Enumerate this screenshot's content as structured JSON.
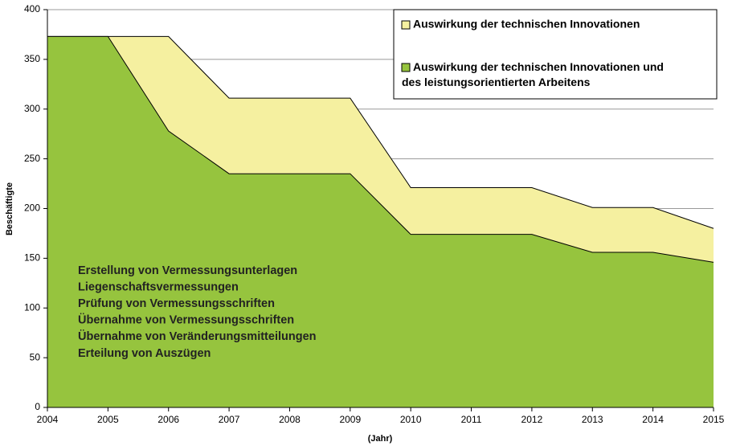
{
  "chart_data": {
    "type": "area",
    "x": [
      2004,
      2005,
      2006,
      2007,
      2008,
      2009,
      2010,
      2011,
      2012,
      2013,
      2014,
      2015
    ],
    "series": [
      {
        "name": "Auswirkung der technischen Innovationen",
        "color": "#f5f0a0",
        "values": [
          373,
          373,
          373,
          311,
          311,
          311,
          221,
          221,
          221,
          201,
          201,
          180
        ]
      },
      {
        "name": "Auswirkung der technischen Innovationen und des leistungsorientierten Arbeitens",
        "color": "#96c43e",
        "values": [
          373,
          373,
          278,
          235,
          235,
          235,
          174,
          174,
          174,
          156,
          156,
          146
        ]
      }
    ],
    "xlim": [
      2004,
      2015
    ],
    "xticks": [
      2004,
      2005,
      2006,
      2007,
      2008,
      2009,
      2010,
      2011,
      2012,
      2013,
      2014,
      2015
    ],
    "ylim": [
      0,
      400
    ],
    "yticks": [
      0,
      50,
      100,
      150,
      200,
      250,
      300,
      350,
      400
    ],
    "grid": true,
    "x_label": "(Jahr)",
    "y_label": "Beschäftigte",
    "legend": "top-right",
    "annotations": [
      "Erstellung von Vermessungsunterlagen",
      "Liegenschaftsvermessungen",
      "Prüfung von Vermessungsschriften",
      "Übernahme von Vermessungsschriften",
      "Übernahme von Veränderungsmitteilungen",
      "Erteilung von Auszügen"
    ]
  }
}
